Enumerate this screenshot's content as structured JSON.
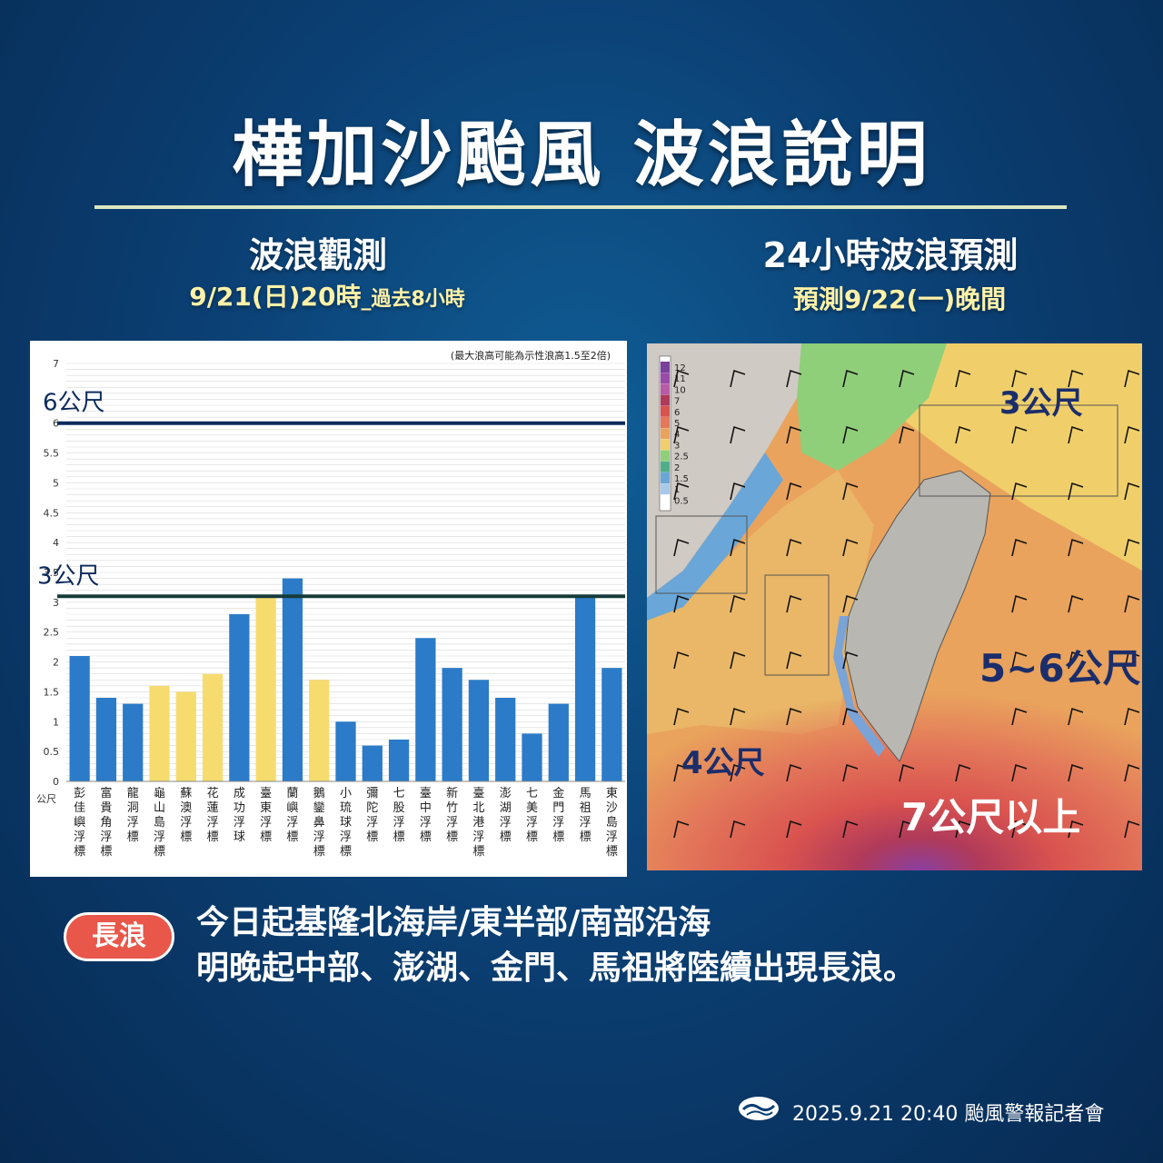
{
  "title": "樺加沙颱風 波浪說明",
  "left_section": {
    "title": "波浪觀測",
    "subtitle_main": "9/21(日)20時",
    "subtitle_small": "_過去8小時"
  },
  "right_section": {
    "title": "24小時波浪預測",
    "subtitle": "預測9/22(一)晚間"
  },
  "colors": {
    "bar_blue": "#2b7bc8",
    "bar_yellow": "#f6dc6e",
    "threshold_6": "#0c2a5c",
    "threshold_3": "#163b3a",
    "badge": "#e8574a"
  },
  "chart_data": {
    "type": "bar",
    "note": "(最大浪高可能為示性浪高1.5至2倍)",
    "ylabel": "公尺",
    "ylim": [
      0,
      7
    ],
    "yticks": [
      "0",
      "0.5",
      "1",
      "1.5",
      "2",
      "2.5",
      "3",
      "3.5",
      "4",
      "4.5",
      "5",
      "5.5",
      "6",
      "7"
    ],
    "categories": [
      "彭佳嶼浮標",
      "富貴角浮標",
      "龍洞浮標",
      "龜山島浮標",
      "蘇澳浮標",
      "花蓮浮標",
      "成功浮球",
      "臺東浮標",
      "蘭嶼浮標",
      "鵝鑾鼻浮標",
      "小琉球浮標",
      "彌陀浮標",
      "七股浮標",
      "臺中浮標",
      "新竹浮標",
      "臺北港浮標",
      "澎湖浮標",
      "七美浮標",
      "金門浮標",
      "馬祖浮標",
      "東沙島浮標"
    ],
    "values": [
      2.1,
      1.4,
      1.3,
      1.6,
      1.5,
      1.8,
      2.8,
      3.1,
      3.4,
      1.7,
      1.0,
      0.6,
      0.7,
      2.4,
      1.9,
      1.7,
      1.4,
      0.8,
      1.3,
      3.1,
      1.9
    ],
    "bar_colors": [
      "blue",
      "blue",
      "blue",
      "yellow",
      "yellow",
      "yellow",
      "blue",
      "yellow",
      "blue",
      "yellow",
      "blue",
      "blue",
      "blue",
      "blue",
      "blue",
      "blue",
      "blue",
      "blue",
      "blue",
      "blue",
      "blue"
    ],
    "thresholds": [
      {
        "value": 6.0,
        "label": "6公尺"
      },
      {
        "value": 3.1,
        "label": "3公尺"
      }
    ],
    "grid": true
  },
  "map": {
    "legend_values": [
      "12",
      "11",
      "10",
      "7",
      "6",
      "5",
      "4",
      "3",
      "2.5",
      "2",
      "1.5",
      "1",
      "0.5"
    ],
    "labels": {
      "north": "3公尺",
      "east": "5~6公尺",
      "west": "4公尺",
      "south": "7公尺以上"
    }
  },
  "swell": {
    "badge": "長浪",
    "line1": "今日起基隆北海岸/東半部/南部沿海",
    "line2": "明晚起中部、澎湖、金門、馬祖將陸續出現長浪。"
  },
  "footer": {
    "text": "2025.9.21  20:40 颱風警報記者會"
  }
}
